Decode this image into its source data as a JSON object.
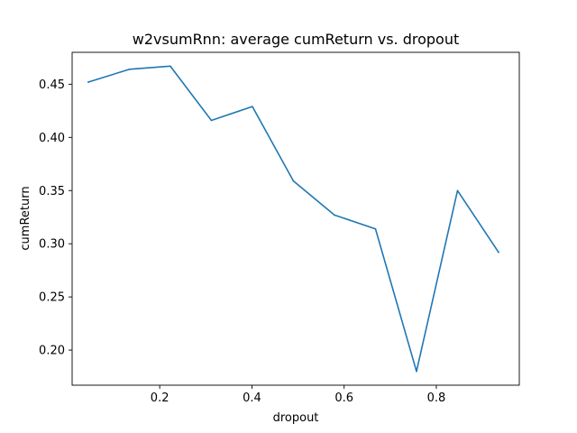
{
  "chart_data": {
    "type": "line",
    "title": "w2vsumRnn: average cumReturn vs. dropout",
    "xlabel": "dropout",
    "ylabel": "cumReturn",
    "xlim": [
      0.01,
      0.98
    ],
    "ylim": [
      0.167,
      0.48
    ],
    "x_ticks": [
      0.2,
      0.4,
      0.6,
      0.8
    ],
    "x_tick_labels": [
      "0.2",
      "0.4",
      "0.6",
      "0.8"
    ],
    "y_ticks": [
      0.2,
      0.25,
      0.3,
      0.35,
      0.4,
      0.45
    ],
    "y_tick_labels": [
      "0.20",
      "0.25",
      "0.30",
      "0.35",
      "0.40",
      "0.45"
    ],
    "grid": false,
    "series": [
      {
        "color": "#1f77b4",
        "x": [
          0.045,
          0.134,
          0.223,
          0.312,
          0.401,
          0.49,
          0.579,
          0.668,
          0.757,
          0.846,
          0.935
        ],
        "y": [
          0.452,
          0.464,
          0.467,
          0.416,
          0.429,
          0.359,
          0.327,
          0.314,
          0.18,
          0.35,
          0.292
        ]
      }
    ]
  }
}
